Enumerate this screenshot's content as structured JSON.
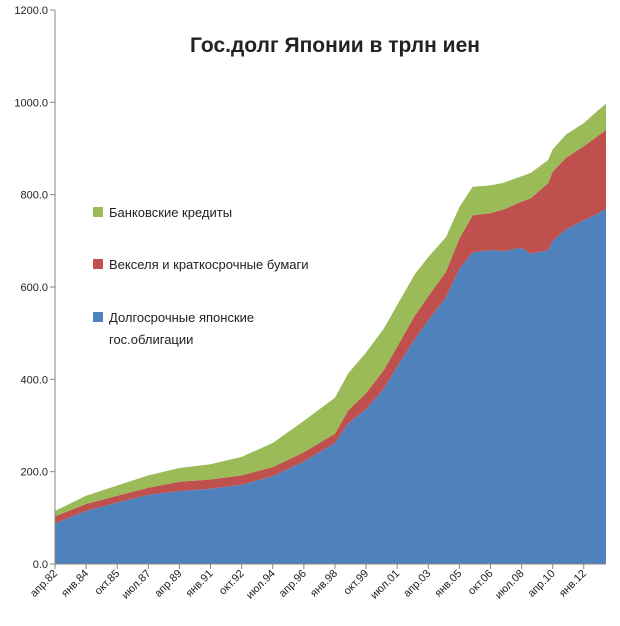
{
  "chart_data": {
    "type": "area",
    "stacked": true,
    "title": "Гос.долг Японии в трлн иен",
    "xlabel": "",
    "ylabel": "",
    "ylim": [
      0,
      1200
    ],
    "y_ticks": [
      "0.0",
      "200.0",
      "400.0",
      "600.0",
      "800.0",
      "1000.0",
      "1200.0"
    ],
    "x_tick_labels": [
      "апр.82",
      "янв.84",
      "окт.85",
      "июл.87",
      "апр.89",
      "янв.91",
      "окт.92",
      "июл.94",
      "апр.96",
      "янв.98",
      "окт.99",
      "июл.01",
      "апр.03",
      "янв.05",
      "окт.06",
      "июл.08",
      "апр.10",
      "янв.12"
    ],
    "x": [
      1982.25,
      1984.0,
      1985.75,
      1987.5,
      1989.25,
      1991.0,
      1992.75,
      1994.5,
      1996.25,
      1998.0,
      1998.75,
      1999.75,
      2000.75,
      2001.5,
      2002.5,
      2003.25,
      2004.25,
      2005.0,
      2005.75,
      2006.75,
      2007.5,
      2008.5,
      2009.0,
      2010.0,
      2010.25,
      2011.0,
      2012.0,
      2012.75,
      2013.25
    ],
    "series": [
      {
        "name": "Долгосрочные японские гос.облигации",
        "color": "#4f81bd",
        "values": [
          88,
          115,
          133,
          150,
          158,
          163,
          172,
          190,
          222,
          262,
          305,
          335,
          380,
          428,
          488,
          528,
          578,
          640,
          675,
          680,
          678,
          685,
          672,
          680,
          700,
          725,
          745,
          758,
          770
        ]
      },
      {
        "name": "Векселя и краткосрочные бумаги",
        "color": "#c0504d",
        "values": [
          15,
          15,
          15,
          15,
          20,
          20,
          20,
          20,
          20,
          20,
          28,
          35,
          40,
          43,
          50,
          52,
          55,
          65,
          80,
          80,
          90,
          100,
          120,
          145,
          150,
          155,
          160,
          168,
          170
        ]
      },
      {
        "name": "Банковские кредиты",
        "color": "#9bbb59",
        "values": [
          12,
          18,
          22,
          27,
          30,
          33,
          40,
          52,
          68,
          78,
          80,
          88,
          90,
          90,
          90,
          85,
          75,
          68,
          62,
          60,
          58,
          55,
          55,
          50,
          48,
          50,
          50,
          55,
          57
        ]
      }
    ],
    "legend_position": "left",
    "grid": false
  }
}
